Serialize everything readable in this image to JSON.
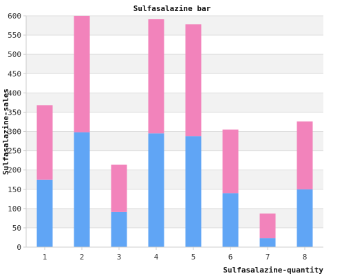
{
  "chart_data": {
    "type": "bar",
    "stacked": true,
    "title": "Sulfasalazine bar",
    "xlabel": "Sulfasalazine-quantity",
    "ylabel": "Sulfasalazine-sales",
    "categories": [
      "1",
      "2",
      "3",
      "4",
      "5",
      "6",
      "7",
      "8"
    ],
    "series": [
      {
        "values": [
          175,
          298,
          91,
          295,
          288,
          140,
          23,
          150
        ],
        "color": "#60a5f5"
      },
      {
        "values": [
          193,
          302,
          123,
          296,
          290,
          165,
          64,
          176
        ],
        "color": "#f283bb"
      }
    ],
    "ylim": [
      0,
      600
    ],
    "yticks": [
      0,
      50,
      100,
      150,
      200,
      250,
      300,
      350,
      400,
      450,
      500,
      550,
      600
    ],
    "grid": true,
    "legend": "none"
  },
  "colors": {
    "band_light": "#f2f2f2",
    "band_white": "#ffffff",
    "gridline": "#dddddd"
  }
}
